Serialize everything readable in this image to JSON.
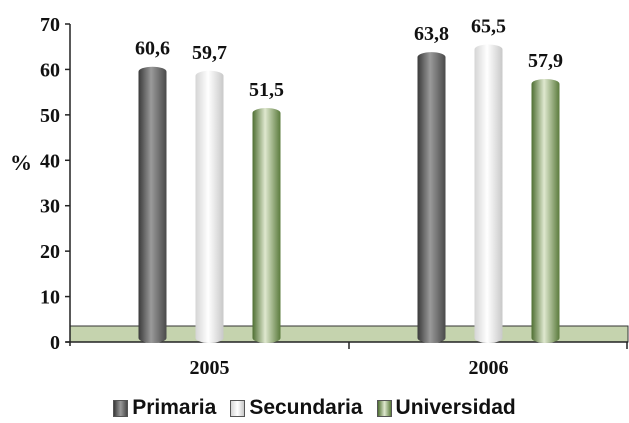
{
  "chart_data": {
    "type": "bar",
    "categories": [
      "2005",
      "2006"
    ],
    "series": [
      {
        "name": "Primaria",
        "values": [
          60.6,
          63.8
        ],
        "labels": [
          "60,6",
          "63,8"
        ],
        "colors": [
          "#3a3a3a",
          "#9a9a9a",
          "#4a4a4a"
        ]
      },
      {
        "name": "Secundaria",
        "values": [
          59.7,
          65.5
        ],
        "labels": [
          "59,7",
          "65,5"
        ],
        "colors": [
          "#d5d5d5",
          "#ffffff",
          "#c8c8c8"
        ]
      },
      {
        "name": "Universidad",
        "values": [
          51.5,
          57.9
        ],
        "labels": [
          "51,5",
          "57,9"
        ],
        "colors": [
          "#4e6e32",
          "#dfe8cf",
          "#5b7b3d"
        ]
      }
    ],
    "ylabel": "%",
    "ylim": [
      0,
      70
    ],
    "yticks": [
      0,
      10,
      20,
      30,
      40,
      50,
      60,
      70
    ],
    "floor_color": "#c5d3ae",
    "legend_position": "bottom"
  }
}
